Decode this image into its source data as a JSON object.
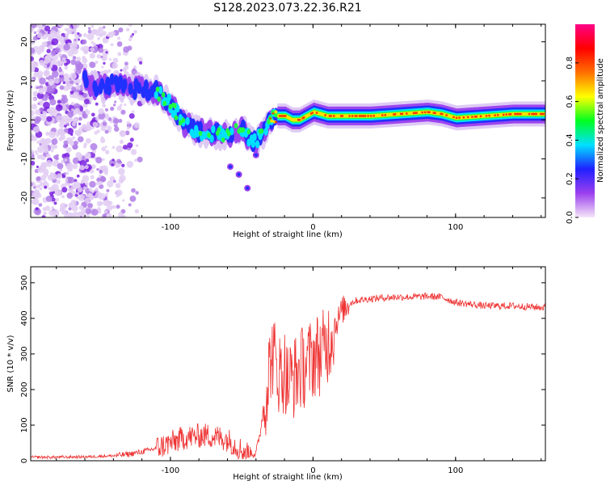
{
  "title": "S128.2023.073.22.36.R21",
  "chart_data": [
    {
      "type": "heatmap",
      "xlabel": "Height of straight line (km)",
      "ylabel": "Frequency (Hz)",
      "xlim": [
        -198,
        163
      ],
      "ylim": [
        -25,
        24.5
      ],
      "xticks": [
        -100,
        0,
        100
      ],
      "yticks": [
        -20,
        -10,
        0,
        10,
        20
      ],
      "grid": false,
      "ridge": {
        "x": [
          -198,
          -160,
          -150,
          -140,
          -130,
          -120,
          -110,
          -100,
          -90,
          -80,
          -70,
          -60,
          -50,
          -42,
          -36,
          -30,
          -25,
          -20,
          -15,
          -10,
          -5,
          0,
          10,
          20,
          40,
          60,
          80,
          90,
          100,
          120,
          140,
          163
        ],
        "y": [
          14,
          10,
          8,
          9,
          8,
          8,
          7.5,
          4,
          -1,
          -3,
          -3.5,
          -4,
          -2,
          -6,
          -4,
          0,
          1,
          1,
          0,
          0,
          1,
          2,
          1,
          1,
          1,
          1.5,
          2,
          1.5,
          0.5,
          1,
          1.5,
          1.5
        ]
      },
      "colorbar": {
        "label": "Normalized spectral amplitude",
        "range": [
          0,
          1
        ],
        "ticks": [
          "0.0",
          "0.2",
          "0.4",
          "0.6",
          "0.8"
        ],
        "colors": [
          "#f6e6f8",
          "#9b40ee",
          "#2020ff",
          "#00e0ff",
          "#00ff20",
          "#ffff00",
          "#ff7000",
          "#ff0000",
          "#ff0088"
        ]
      }
    },
    {
      "type": "line",
      "xlabel": "Height of straight line (km)",
      "ylabel": "SNR (10 * v/v)",
      "xlim": [
        -198,
        163
      ],
      "ylim": [
        0,
        545
      ],
      "xticks": [
        -100,
        0,
        100
      ],
      "yticks": [
        0,
        100,
        200,
        300,
        400,
        500
      ],
      "grid": false,
      "color": "#ee3333",
      "series": [
        {
          "x": [
            -198,
            -180,
            -160,
            -140,
            -130,
            -120,
            -110,
            -100,
            -90,
            -80,
            -75,
            -70,
            -65,
            -60,
            -55,
            -50,
            -45,
            -40,
            -37,
            -35,
            -32,
            -30,
            -28,
            -26,
            -24,
            -22,
            -20,
            -18,
            -15,
            -12,
            -10,
            -8,
            -5,
            -2,
            0,
            3,
            5,
            8,
            10,
            12,
            15,
            18,
            20,
            25,
            30,
            40,
            50,
            60,
            70,
            80,
            90,
            100,
            110,
            120,
            140,
            163
          ],
          "y": [
            10,
            10,
            11,
            14,
            18,
            25,
            35,
            50,
            65,
            70,
            72,
            68,
            65,
            60,
            45,
            30,
            25,
            20,
            80,
            140,
            220,
            280,
            300,
            270,
            250,
            240,
            260,
            220,
            230,
            240,
            250,
            260,
            270,
            280,
            290,
            300,
            300,
            310,
            330,
            350,
            380,
            400,
            420,
            440,
            450,
            455,
            458,
            460,
            460,
            462,
            460,
            445,
            440,
            435,
            435,
            430
          ]
        }
      ]
    }
  ]
}
